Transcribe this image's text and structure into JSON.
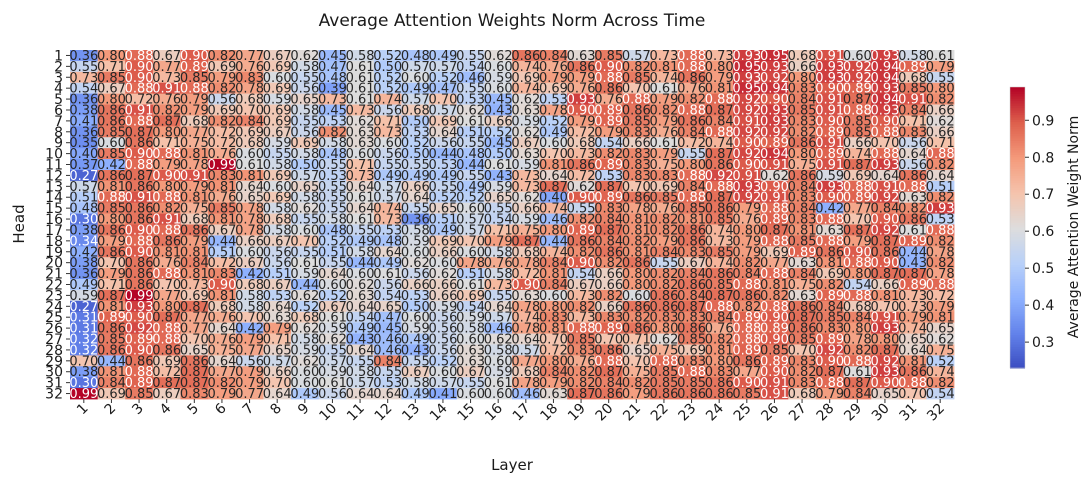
{
  "chart_data": {
    "type": "heatmap",
    "title": "Average Attention Weights Norm Across Time",
    "xlabel": "Layer",
    "ylabel": "Head",
    "colorbar_label": "Average Attention Weight Norm",
    "colormap": "coolwarm",
    "colorbar_ticks": [
      0.3,
      0.4,
      0.5,
      0.6,
      0.7,
      0.8,
      0.9
    ],
    "value_range": [
      0.23,
      0.99
    ],
    "x_categories": [
      "1",
      "2",
      "3",
      "4",
      "5",
      "6",
      "7",
      "8",
      "9",
      "10",
      "11",
      "12",
      "13",
      "14",
      "15",
      "16",
      "17",
      "18",
      "19",
      "20",
      "21",
      "22",
      "23",
      "24",
      "25",
      "26",
      "27",
      "28",
      "29",
      "30",
      "31",
      "32"
    ],
    "y_categories": [
      "1",
      "2",
      "3",
      "4",
      "5",
      "6",
      "7",
      "8",
      "9",
      "10",
      "11",
      "12",
      "13",
      "14",
      "15",
      "16",
      "17",
      "18",
      "19",
      "20",
      "21",
      "22",
      "23",
      "24",
      "25",
      "26",
      "27",
      "28",
      "29",
      "30",
      "31",
      "32"
    ],
    "cell_annotations": true,
    "values": [
      [
        0.36,
        0.8,
        0.88,
        0.67,
        0.9,
        0.82,
        0.77,
        0.67,
        0.62,
        0.45,
        0.58,
        0.52,
        0.48,
        0.49,
        0.55,
        0.62,
        0.86,
        0.84,
        0.63,
        0.85,
        0.57,
        0.73,
        0.88,
        0.73,
        0.93,
        0.95,
        0.68,
        0.91,
        0.6,
        0.93,
        0.58,
        0.61
      ],
      [
        0.55,
        0.71,
        0.9,
        0.77,
        0.89,
        0.69,
        0.76,
        0.69,
        0.58,
        0.47,
        0.61,
        0.5,
        0.57,
        0.57,
        0.54,
        0.6,
        0.74,
        0.76,
        0.86,
        0.9,
        0.82,
        0.81,
        0.88,
        0.8,
        0.95,
        0.93,
        0.66,
        0.93,
        0.92,
        0.94,
        0.89,
        0.79
      ],
      [
        0.73,
        0.85,
        0.9,
        0.73,
        0.85,
        0.79,
        0.83,
        0.6,
        0.55,
        0.48,
        0.61,
        0.52,
        0.6,
        0.52,
        0.46,
        0.59,
        0.69,
        0.79,
        0.79,
        0.88,
        0.85,
        0.74,
        0.86,
        0.79,
        0.93,
        0.92,
        0.8,
        0.93,
        0.92,
        0.94,
        0.68,
        0.55
      ],
      [
        0.54,
        0.67,
        0.88,
        0.91,
        0.88,
        0.82,
        0.78,
        0.69,
        0.56,
        0.39,
        0.61,
        0.52,
        0.49,
        0.47,
        0.55,
        0.6,
        0.74,
        0.69,
        0.76,
        0.86,
        0.7,
        0.61,
        0.76,
        0.81,
        0.95,
        0.94,
        0.83,
        0.9,
        0.89,
        0.93,
        0.85,
        0.8
      ],
      [
        0.36,
        0.8,
        0.72,
        0.76,
        0.79,
        0.56,
        0.68,
        0.59,
        0.65,
        0.73,
        0.61,
        0.74,
        0.57,
        0.7,
        0.53,
        0.45,
        0.62,
        0.53,
        0.93,
        0.76,
        0.88,
        0.79,
        0.82,
        0.88,
        0.92,
        0.9,
        0.84,
        0.91,
        0.87,
        0.94,
        0.91,
        0.82
      ],
      [
        0.38,
        0.86,
        0.91,
        0.82,
        0.79,
        0.69,
        0.7,
        0.69,
        0.58,
        0.45,
        0.73,
        0.56,
        0.68,
        0.57,
        0.62,
        0.43,
        0.63,
        0.78,
        0.9,
        0.89,
        0.86,
        0.82,
        0.88,
        0.87,
        0.92,
        0.93,
        0.85,
        0.91,
        0.88,
        0.93,
        0.84,
        0.66
      ],
      [
        0.41,
        0.86,
        0.88,
        0.87,
        0.68,
        0.82,
        0.84,
        0.69,
        0.55,
        0.53,
        0.62,
        0.71,
        0.5,
        0.69,
        0.61,
        0.66,
        0.59,
        0.52,
        0.79,
        0.89,
        0.85,
        0.79,
        0.86,
        0.84,
        0.91,
        0.93,
        0.83,
        0.9,
        0.85,
        0.9,
        0.71,
        0.62
      ],
      [
        0.36,
        0.85,
        0.87,
        0.8,
        0.77,
        0.72,
        0.69,
        0.67,
        0.56,
        0.82,
        0.63,
        0.73,
        0.53,
        0.64,
        0.51,
        0.52,
        0.62,
        0.49,
        0.72,
        0.79,
        0.83,
        0.76,
        0.84,
        0.88,
        0.92,
        0.92,
        0.82,
        0.89,
        0.85,
        0.88,
        0.83,
        0.66
      ],
      [
        0.35,
        0.6,
        0.86,
        0.71,
        0.75,
        0.72,
        0.68,
        0.59,
        0.69,
        0.58,
        0.63,
        0.6,
        0.52,
        0.56,
        0.55,
        0.45,
        0.67,
        0.6,
        0.68,
        0.54,
        0.66,
        0.61,
        0.72,
        0.74,
        0.9,
        0.89,
        0.86,
        0.91,
        0.66,
        0.7,
        0.56,
        0.71
      ],
      [
        0.4,
        0.85,
        0.9,
        0.88,
        0.81,
        0.76,
        0.6,
        0.55,
        0.58,
        0.48,
        0.6,
        0.56,
        0.5,
        0.44,
        0.48,
        0.5,
        0.63,
        0.7,
        0.73,
        0.82,
        0.83,
        0.79,
        0.55,
        0.87,
        0.92,
        0.94,
        0.8,
        0.89,
        0.74,
        0.88,
        0.64,
        0.88
      ],
      [
        0.37,
        0.42,
        0.88,
        0.79,
        0.78,
        0.99,
        0.61,
        0.58,
        0.5,
        0.55,
        0.71,
        0.55,
        0.55,
        0.53,
        0.44,
        0.61,
        0.59,
        0.81,
        0.86,
        0.89,
        0.83,
        0.75,
        0.8,
        0.86,
        0.9,
        0.91,
        0.75,
        0.91,
        0.87,
        0.93,
        0.56,
        0.82
      ],
      [
        0.27,
        0.86,
        0.87,
        0.9,
        0.91,
        0.83,
        0.81,
        0.69,
        0.57,
        0.53,
        0.73,
        0.49,
        0.49,
        0.49,
        0.55,
        0.43,
        0.73,
        0.64,
        0.72,
        0.53,
        0.83,
        0.83,
        0.88,
        0.92,
        0.91,
        0.62,
        0.86,
        0.59,
        0.69,
        0.64,
        0.86,
        0.64
      ],
      [
        0.57,
        0.81,
        0.86,
        0.8,
        0.79,
        0.81,
        0.64,
        0.6,
        0.65,
        0.55,
        0.64,
        0.57,
        0.66,
        0.55,
        0.49,
        0.59,
        0.73,
        0.87,
        0.62,
        0.87,
        0.7,
        0.69,
        0.84,
        0.88,
        0.93,
        0.9,
        0.84,
        0.93,
        0.88,
        0.91,
        0.88,
        0.51
      ],
      [
        0.51,
        0.88,
        0.91,
        0.88,
        0.81,
        0.76,
        0.65,
        0.69,
        0.58,
        0.55,
        0.61,
        0.57,
        0.64,
        0.52,
        0.52,
        0.65,
        0.62,
        0.4,
        0.9,
        0.89,
        0.86,
        0.85,
        0.88,
        0.87,
        0.92,
        0.91,
        0.83,
        0.9,
        0.89,
        0.92,
        0.63,
        0.82
      ],
      [
        0.48,
        0.85,
        0.86,
        0.82,
        0.75,
        0.85,
        0.78,
        0.58,
        0.62,
        0.55,
        0.64,
        0.74,
        0.55,
        0.65,
        0.6,
        0.55,
        0.66,
        0.74,
        0.55,
        0.83,
        0.78,
        0.76,
        0.85,
        0.86,
        0.79,
        0.88,
        0.84,
        0.42,
        0.77,
        0.84,
        0.82,
        0.93
      ],
      [
        0.3,
        0.8,
        0.86,
        0.91,
        0.68,
        0.81,
        0.78,
        0.68,
        0.55,
        0.58,
        0.61,
        0.73,
        0.36,
        0.51,
        0.57,
        0.54,
        0.59,
        0.46,
        0.82,
        0.84,
        0.81,
        0.82,
        0.81,
        0.85,
        0.76,
        0.89,
        0.83,
        0.88,
        0.7,
        0.9,
        0.86,
        0.53
      ],
      [
        0.38,
        0.86,
        0.9,
        0.88,
        0.86,
        0.67,
        0.78,
        0.58,
        0.6,
        0.48,
        0.55,
        0.53,
        0.58,
        0.49,
        0.57,
        0.71,
        0.75,
        0.8,
        0.89,
        0.87,
        0.81,
        0.82,
        0.86,
        0.74,
        0.8,
        0.87,
        0.81,
        0.63,
        0.87,
        0.92,
        0.61,
        0.88
      ],
      [
        0.34,
        0.79,
        0.88,
        0.86,
        0.79,
        0.44,
        0.66,
        0.67,
        0.7,
        0.52,
        0.49,
        0.48,
        0.59,
        0.69,
        0.7,
        0.79,
        0.87,
        0.44,
        0.86,
        0.84,
        0.82,
        0.79,
        0.86,
        0.73,
        0.79,
        0.88,
        0.85,
        0.88,
        0.79,
        0.87,
        0.89,
        0.82
      ],
      [
        0.42,
        0.86,
        0.9,
        0.81,
        0.81,
        0.51,
        0.6,
        0.56,
        0.55,
        0.51,
        0.58,
        0.64,
        0.6,
        0.66,
        0.6,
        0.58,
        0.68,
        0.74,
        0.82,
        0.86,
        0.81,
        0.84,
        0.83,
        0.85,
        0.79,
        0.69,
        0.89,
        0.86,
        0.9,
        0.86,
        0.44,
        0.78
      ],
      [
        0.38,
        0.7,
        0.86,
        0.76,
        0.84,
        0.72,
        0.67,
        0.56,
        0.61,
        0.55,
        0.44,
        0.49,
        0.62,
        0.6,
        0.78,
        0.76,
        0.78,
        0.84,
        0.9,
        0.82,
        0.86,
        0.55,
        0.67,
        0.74,
        0.82,
        0.77,
        0.63,
        0.81,
        0.88,
        0.9,
        0.43,
        0.82
      ],
      [
        0.36,
        0.79,
        0.86,
        0.88,
        0.81,
        0.83,
        0.42,
        0.51,
        0.59,
        0.64,
        0.6,
        0.61,
        0.56,
        0.62,
        0.51,
        0.58,
        0.72,
        0.81,
        0.54,
        0.66,
        0.8,
        0.82,
        0.84,
        0.86,
        0.84,
        0.88,
        0.84,
        0.69,
        0.8,
        0.87,
        0.87,
        0.78
      ],
      [
        0.49,
        0.71,
        0.86,
        0.7,
        0.73,
        0.9,
        0.68,
        0.67,
        0.44,
        0.6,
        0.62,
        0.56,
        0.66,
        0.66,
        0.61,
        0.73,
        0.9,
        0.84,
        0.67,
        0.66,
        0.8,
        0.82,
        0.86,
        0.85,
        0.88,
        0.81,
        0.75,
        0.82,
        0.54,
        0.66,
        0.89,
        0.88
      ],
      [
        0.59,
        0.87,
        0.99,
        0.77,
        0.69,
        0.81,
        0.58,
        0.53,
        0.62,
        0.52,
        0.63,
        0.54,
        0.53,
        0.66,
        0.69,
        0.55,
        0.63,
        0.6,
        0.73,
        0.82,
        0.6,
        0.86,
        0.84,
        0.87,
        0.86,
        0.82,
        0.63,
        0.89,
        0.88,
        0.81,
        0.73,
        0.72
      ],
      [
        0.27,
        0.81,
        0.93,
        0.8,
        0.87,
        0.68,
        0.58,
        0.64,
        0.52,
        0.67,
        0.64,
        0.65,
        0.5,
        0.59,
        0.54,
        0.64,
        0.78,
        0.8,
        0.82,
        0.66,
        0.86,
        0.86,
        0.87,
        0.88,
        0.82,
        0.88,
        0.86,
        0.84,
        0.68,
        0.7,
        0.73,
        0.79
      ],
      [
        0.31,
        0.89,
        0.9,
        0.87,
        0.77,
        0.76,
        0.7,
        0.63,
        0.68,
        0.61,
        0.54,
        0.47,
        0.6,
        0.56,
        0.59,
        0.57,
        0.74,
        0.83,
        0.73,
        0.83,
        0.82,
        0.83,
        0.83,
        0.84,
        0.89,
        0.9,
        0.87,
        0.85,
        0.84,
        0.91,
        0.79,
        0.81
      ],
      [
        0.31,
        0.86,
        0.92,
        0.88,
        0.77,
        0.64,
        0.42,
        0.79,
        0.62,
        0.59,
        0.49,
        0.45,
        0.59,
        0.56,
        0.58,
        0.46,
        0.78,
        0.81,
        0.88,
        0.89,
        0.86,
        0.8,
        0.86,
        0.76,
        0.88,
        0.89,
        0.86,
        0.83,
        0.8,
        0.93,
        0.74,
        0.65
      ],
      [
        0.32,
        0.85,
        0.89,
        0.88,
        0.7,
        0.76,
        0.79,
        0.71,
        0.58,
        0.62,
        0.43,
        0.46,
        0.49,
        0.56,
        0.6,
        0.62,
        0.64,
        0.7,
        0.85,
        0.7,
        0.71,
        0.62,
        0.85,
        0.82,
        0.88,
        0.9,
        0.85,
        0.89,
        0.78,
        0.8,
        0.65,
        0.62
      ],
      [
        0.32,
        0.86,
        0.9,
        0.86,
        0.65,
        0.75,
        0.77,
        0.65,
        0.59,
        0.55,
        0.64,
        0.46,
        0.43,
        0.56,
        0.63,
        0.58,
        0.57,
        0.72,
        0.83,
        0.86,
        0.65,
        0.75,
        0.69,
        0.81,
        0.89,
        0.85,
        0.7,
        0.92,
        0.82,
        0.87,
        0.64,
        0.75
      ],
      [
        0.7,
        0.44,
        0.86,
        0.69,
        0.86,
        0.64,
        0.56,
        0.57,
        0.62,
        0.57,
        0.55,
        0.84,
        0.55,
        0.52,
        0.63,
        0.6,
        0.77,
        0.8,
        0.76,
        0.88,
        0.7,
        0.88,
        0.83,
        0.8,
        0.86,
        0.89,
        0.83,
        0.9,
        0.88,
        0.92,
        0.81,
        0.52
      ],
      [
        0.38,
        0.81,
        0.88,
        0.72,
        0.87,
        0.77,
        0.79,
        0.66,
        0.6,
        0.59,
        0.58,
        0.55,
        0.67,
        0.6,
        0.67,
        0.59,
        0.68,
        0.84,
        0.82,
        0.87,
        0.75,
        0.85,
        0.88,
        0.83,
        0.77,
        0.9,
        0.82,
        0.87,
        0.61,
        0.93,
        0.86,
        0.74
      ],
      [
        0.3,
        0.84,
        0.89,
        0.87,
        0.87,
        0.82,
        0.79,
        0.7,
        0.6,
        0.61,
        0.57,
        0.53,
        0.58,
        0.57,
        0.55,
        0.61,
        0.78,
        0.79,
        0.82,
        0.84,
        0.82,
        0.85,
        0.85,
        0.86,
        0.9,
        0.91,
        0.83,
        0.88,
        0.87,
        0.9,
        0.88,
        0.82
      ],
      [
        0.99,
        0.69,
        0.85,
        0.67,
        0.83,
        0.79,
        0.77,
        0.64,
        0.49,
        0.56,
        0.64,
        0.64,
        0.49,
        0.41,
        0.6,
        0.6,
        0.46,
        0.63,
        0.87,
        0.86,
        0.79,
        0.86,
        0.86,
        0.86,
        0.85,
        0.91,
        0.68,
        0.79,
        0.84,
        0.65,
        0.7,
        0.54
      ]
    ]
  }
}
